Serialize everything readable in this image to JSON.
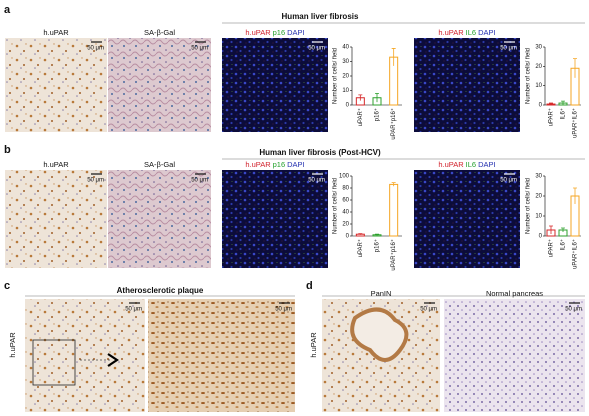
{
  "panels": {
    "a": {
      "letter": "a",
      "title": "Human liver fibrosis",
      "images": [
        {
          "label": "h.uPAR",
          "scale": "50 μm"
        },
        {
          "label": "SA-β-Gal",
          "scale": "50 μm"
        },
        {
          "stain": [
            "h.uPAR",
            "p16",
            "DAPI"
          ],
          "scale": "50 μm"
        },
        {
          "stain": [
            "h.uPAR",
            "IL6",
            "DAPI"
          ],
          "scale": "50 μm"
        }
      ]
    },
    "b": {
      "letter": "b",
      "title": "Human liver fibrosis (Post-HCV)",
      "images": [
        {
          "label": "h.uPAR",
          "scale": "50 μm"
        },
        {
          "label": "SA-β-Gal",
          "scale": "50 μm"
        },
        {
          "stain": [
            "h.uPAR",
            "p16",
            "DAPI"
          ],
          "scale": "50 μm"
        },
        {
          "stain": [
            "h.uPAR",
            "IL6",
            "DAPI"
          ],
          "scale": "50 μm"
        }
      ]
    },
    "c": {
      "letter": "c",
      "title": "Atherosclerotic plaque",
      "side": "h.uPAR",
      "images": [
        {
          "scale": "50 μm"
        },
        {
          "scale": "50 μm"
        }
      ]
    },
    "d": {
      "letter": "d",
      "side": "h.uPAR",
      "images": [
        {
          "label": "PanIN",
          "scale": "50 μm"
        },
        {
          "label": "Normal pancreas",
          "scale": "50 μm"
        }
      ]
    }
  },
  "chart_data": [
    {
      "type": "bar",
      "ylabel": "Number of cells/ field",
      "categories": [
        "uPAR⁺",
        "p16⁺",
        "uPAR⁺p16⁺"
      ],
      "values": [
        5,
        5,
        33
      ],
      "errors": [
        2,
        3,
        6
      ],
      "colors": [
        "#d62728",
        "#2ca02c",
        "#f5a623"
      ],
      "ylim": [
        0,
        40
      ],
      "yticks": [
        0,
        10,
        20,
        30,
        40
      ]
    },
    {
      "type": "bar",
      "ylabel": "Number of cells/ field",
      "categories": [
        "uPAR⁺",
        "IL6⁺",
        "uPAR⁺IL6⁺"
      ],
      "values": [
        0.5,
        1,
        19
      ],
      "errors": [
        0.5,
        1,
        5
      ],
      "colors": [
        "#d62728",
        "#2ca02c",
        "#f5a623"
      ],
      "ylim": [
        0,
        30
      ],
      "yticks": [
        0,
        10,
        20,
        30
      ]
    },
    {
      "type": "bar",
      "ylabel": "Number of cells/ field",
      "categories": [
        "uPAR⁺",
        "p16⁺",
        "uPAR⁺p16⁺"
      ],
      "values": [
        3,
        2,
        86
      ],
      "errors": [
        1,
        1,
        3
      ],
      "colors": [
        "#d62728",
        "#2ca02c",
        "#f5a623"
      ],
      "ylim": [
        0,
        100
      ],
      "yticks": [
        0,
        20,
        40,
        60,
        80,
        100
      ]
    },
    {
      "type": "bar",
      "ylabel": "Number of cells/ field",
      "categories": [
        "uPAR⁺",
        "IL6⁺",
        "uPAR⁺IL6⁺"
      ],
      "values": [
        3,
        3,
        20
      ],
      "errors": [
        2,
        1,
        4
      ],
      "colors": [
        "#d62728",
        "#2ca02c",
        "#f5a623"
      ],
      "ylim": [
        0,
        30
      ],
      "yticks": [
        0,
        10,
        20,
        30
      ]
    }
  ]
}
